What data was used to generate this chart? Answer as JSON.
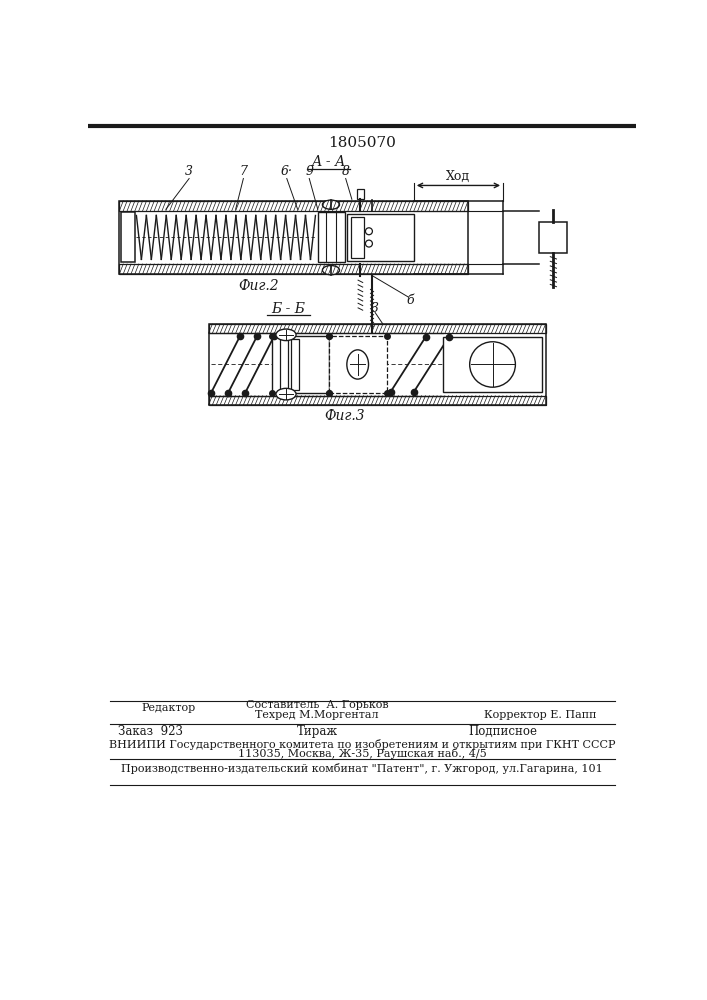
{
  "title": "1805070",
  "fig2_label": "А - А",
  "fig2_caption": "Фиг.2",
  "fig3_label": "Б - Б",
  "fig3_caption": "Фиг.3",
  "label_3_fig2": "3",
  "label_7": "7",
  "label_6dot": "6·",
  "label_9": "9",
  "label_8": "8",
  "label_xod": "Ход",
  "label_5": "б",
  "label_3_fig3": "3",
  "bg_color": "#ffffff",
  "line_color": "#1a1a1a",
  "footer_line1_left": "Редактор",
  "footer_line1_center": "Составитель  А. Горьков",
  "footer_line2_center": "Техред М.Моргентал",
  "footer_line2_right": "Корректор Е. Папп",
  "footer_line3_left": "Заказ  923",
  "footer_line3_center": "Тираж",
  "footer_line3_right": "Подписное",
  "footer_line4": "ВНИИПИ Государственного комитета по изобретениям и открытиям при ГКНТ СССР",
  "footer_line5": "113035, Москва, Ж-35, Раушская наб., 4/5",
  "footer_line6": "Производственно-издательский комбинат \"Патент\", г. Ужгород, ул.Гагарина, 101"
}
